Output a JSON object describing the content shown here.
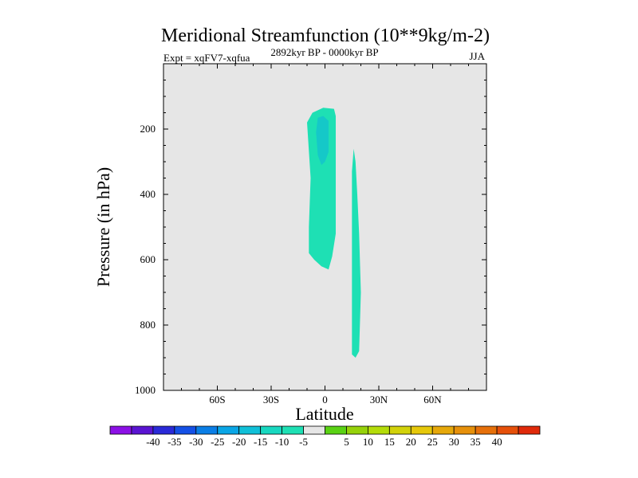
{
  "chart_data": {
    "type": "contour",
    "title": "Meridional Streamfunction (10**9kg/m-2)",
    "subtitle_left": "Expt = xqFV7-xqfua",
    "subtitle_center": "2892kyr BP - 0000kyr BP",
    "subtitle_right": "JJA",
    "xlabel": "Latitude",
    "ylabel": "Pressure (in hPa)",
    "xlim": [
      -90,
      90
    ],
    "ylim": [
      1000,
      0
    ],
    "x_ticks": [
      {
        "value": -60,
        "label": "60S"
      },
      {
        "value": -30,
        "label": "30S"
      },
      {
        "value": 0,
        "label": "0"
      },
      {
        "value": 30,
        "label": "30N"
      },
      {
        "value": 60,
        "label": "60N"
      }
    ],
    "y_ticks": [
      {
        "value": 200,
        "label": "200"
      },
      {
        "value": 400,
        "label": "400"
      },
      {
        "value": 600,
        "label": "600"
      },
      {
        "value": 800,
        "label": "800"
      },
      {
        "value": 1000,
        "label": "1000"
      }
    ],
    "background_color": "#e6e6e6",
    "regions": [
      {
        "name": "cell-south-of-equator",
        "level_range": [
          -10,
          -5
        ],
        "color": "#1ee0b4",
        "outline": [
          [
            -10,
            180
          ],
          [
            -7,
            150
          ],
          [
            -1,
            135
          ],
          [
            5,
            138
          ],
          [
            6,
            160
          ],
          [
            6,
            520
          ],
          [
            4,
            590
          ],
          [
            2,
            630
          ],
          [
            -2,
            620
          ],
          [
            -6,
            600
          ],
          [
            -9,
            580
          ],
          [
            -9,
            500
          ],
          [
            -8,
            350
          ]
        ]
      },
      {
        "name": "cell-south-core",
        "level_range": [
          -15,
          -10
        ],
        "color": "#15c8c8",
        "outline": [
          [
            -4,
            165
          ],
          [
            -1,
            160
          ],
          [
            2,
            175
          ],
          [
            2,
            270
          ],
          [
            0,
            300
          ],
          [
            -2,
            310
          ],
          [
            -4,
            280
          ],
          [
            -5,
            210
          ]
        ]
      },
      {
        "name": "cell-north-of-equator",
        "level_range": [
          -10,
          -5
        ],
        "color": "#1ee0b4",
        "outline": [
          [
            16,
            260
          ],
          [
            17,
            300
          ],
          [
            18,
            400
          ],
          [
            19,
            520
          ],
          [
            20,
            700
          ],
          [
            19,
            880
          ],
          [
            17,
            900
          ],
          [
            15,
            890
          ],
          [
            15,
            700
          ],
          [
            15,
            520
          ],
          [
            15,
            330
          ]
        ]
      }
    ],
    "colorbar": {
      "colors": [
        "#8c10e6",
        "#5a14d2",
        "#2a2ad8",
        "#1450e6",
        "#0a7ee6",
        "#0aa6e6",
        "#10c0d8",
        "#18d8c0",
        "#1ee0b4",
        "#e6e6e6",
        "#5ad214",
        "#96d20a",
        "#b4dc0a",
        "#d2d20a",
        "#e6c80a",
        "#e6a80a",
        "#e6900a",
        "#e6700a",
        "#e6500a",
        "#e02a0a"
      ],
      "labels": [
        "-40",
        "-35",
        "-30",
        "-25",
        "-20",
        "-15",
        "-10",
        "-5",
        "5",
        "10",
        "15",
        "20",
        "25",
        "30",
        "35",
        "40"
      ]
    }
  }
}
